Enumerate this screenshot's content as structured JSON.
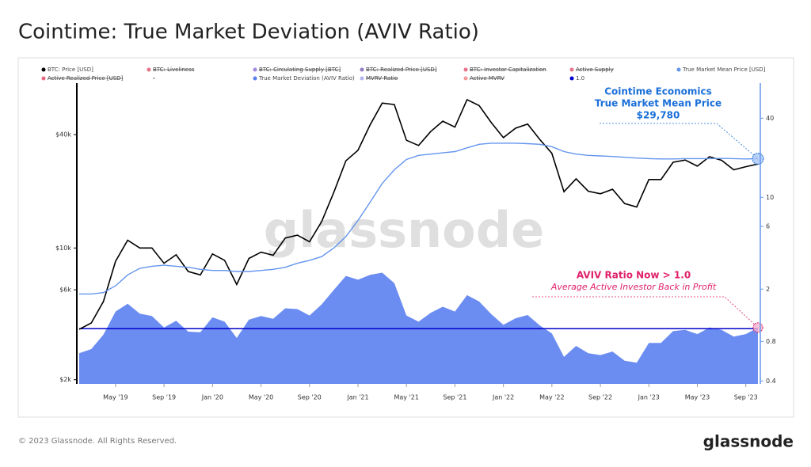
{
  "chart_data": {
    "type": "line",
    "title": "Cointime: True Market Deviation (AVIV Ratio)",
    "x": [
      "2019-02",
      "2019-03",
      "2019-04",
      "2019-05",
      "2019-06",
      "2019-07",
      "2019-08",
      "2019-09",
      "2019-10",
      "2019-11",
      "2019-12",
      "2020-01",
      "2020-02",
      "2020-03",
      "2020-04",
      "2020-05",
      "2020-06",
      "2020-07",
      "2020-08",
      "2020-09",
      "2020-10",
      "2020-11",
      "2020-12",
      "2021-01",
      "2021-02",
      "2021-03",
      "2021-04",
      "2021-05",
      "2021-06",
      "2021-07",
      "2021-08",
      "2021-09",
      "2021-10",
      "2021-11",
      "2021-12",
      "2022-01",
      "2022-02",
      "2022-03",
      "2022-04",
      "2022-05",
      "2022-06",
      "2022-07",
      "2022-08",
      "2022-09",
      "2022-10",
      "2022-11",
      "2022-12",
      "2023-01",
      "2023-02",
      "2023-03",
      "2023-04",
      "2023-05",
      "2023-06",
      "2023-07",
      "2023-08",
      "2023-09",
      "2023-10"
    ],
    "xlim": [
      "2019-02",
      "2023-10"
    ],
    "xticks": [
      {
        "value": "2019-05",
        "label": "May '19"
      },
      {
        "value": "2019-09",
        "label": "Sep '19"
      },
      {
        "value": "2020-01",
        "label": "Jan '20"
      },
      {
        "value": "2020-05",
        "label": "May '20"
      },
      {
        "value": "2020-09",
        "label": "Sep '20"
      },
      {
        "value": "2021-01",
        "label": "Jan '21"
      },
      {
        "value": "2021-05",
        "label": "May '21"
      },
      {
        "value": "2021-09",
        "label": "Sep '21"
      },
      {
        "value": "2022-01",
        "label": "Jan '22"
      },
      {
        "value": "2022-05",
        "label": "May '22"
      },
      {
        "value": "2022-09",
        "label": "Sep '22"
      },
      {
        "value": "2023-01",
        "label": "Jan '23"
      },
      {
        "value": "2023-05",
        "label": "May '23"
      },
      {
        "value": "2023-09",
        "label": "Sep '23"
      }
    ],
    "ylim": [
      1900,
      75000
    ],
    "ylog": true,
    "yticks": [
      {
        "value": 2000,
        "label": "$2k"
      },
      {
        "value": 6000,
        "label": "$6k"
      },
      {
        "value": 10000,
        "label": "$10k"
      },
      {
        "value": 40000,
        "label": "$40k"
      }
    ],
    "y2lim": [
      0.38,
      74
    ],
    "y2log": true,
    "y2ticks": [
      0.4,
      0.8,
      2,
      6,
      10,
      40
    ],
    "series": [
      {
        "name": "BTC: Price [USD]",
        "color": "#000000",
        "style": "line",
        "values": [
          3700,
          4000,
          5200,
          8500,
          11000,
          10000,
          10000,
          8300,
          9200,
          7500,
          7200,
          9300,
          8600,
          6400,
          8800,
          9500,
          9150,
          11300,
          11700,
          10800,
          13800,
          19700,
          29000,
          33000,
          45000,
          58800,
          57700,
          37300,
          35000,
          41500,
          47100,
          43800,
          61300,
          57000,
          46300,
          38500,
          43200,
          45500,
          37700,
          31800,
          19900,
          23300,
          20000,
          19400,
          20500,
          17200,
          16500,
          23100,
          23100,
          28500,
          29300,
          27200,
          30500,
          29200,
          26000,
          27000,
          27900
        ]
      },
      {
        "name": "True Market Mean Price [USD]",
        "color": "#6495ed",
        "style": "line",
        "values": [
          5700,
          5700,
          5800,
          6300,
          7200,
          7800,
          8000,
          8100,
          8000,
          7900,
          7700,
          7600,
          7600,
          7500,
          7500,
          7600,
          7700,
          7900,
          8300,
          8600,
          9000,
          10000,
          11500,
          14000,
          17500,
          22000,
          26000,
          29500,
          31000,
          31500,
          32000,
          32500,
          34000,
          35500,
          36000,
          36000,
          36000,
          35800,
          35500,
          34500,
          32500,
          31500,
          31000,
          30800,
          30600,
          30300,
          30000,
          29800,
          29700,
          29700,
          29800,
          29800,
          29800,
          29900,
          29800,
          29700,
          29780
        ]
      },
      {
        "name": "True Market Deviation (AVIV Ratio)",
        "color": "#5b7ff0",
        "style": "area",
        "axis": "y2",
        "values": [
          0.65,
          0.7,
          0.9,
          1.35,
          1.55,
          1.3,
          1.25,
          1.02,
          1.15,
          0.95,
          0.94,
          1.22,
          1.13,
          0.85,
          1.17,
          1.25,
          1.19,
          1.43,
          1.41,
          1.26,
          1.53,
          1.97,
          2.52,
          2.36,
          2.57,
          2.67,
          2.22,
          1.26,
          1.13,
          1.32,
          1.47,
          1.35,
          1.8,
          1.61,
          1.29,
          1.07,
          1.2,
          1.27,
          1.06,
          0.92,
          0.61,
          0.74,
          0.65,
          0.63,
          0.67,
          0.57,
          0.55,
          0.78,
          0.78,
          0.96,
          0.98,
          0.91,
          1.02,
          0.98,
          0.87,
          0.91,
          1.02
        ]
      }
    ],
    "hline": {
      "name": "1.0",
      "value": 1,
      "axis": "y2",
      "color": "#0000cc"
    },
    "hidden_series": [
      {
        "name": "BTC: Liveliness",
        "color": "#e0506a"
      },
      {
        "name": "BTC: Circulating Supply [BTC]",
        "color": "#8a6bd8"
      },
      {
        "name": "BTC: Realized Price [USD]",
        "color": "#7a5ab8"
      },
      {
        "name": "BTC: Investor Capitalization",
        "color": "#e0506a"
      },
      {
        "name": "Active Supply",
        "color": "#e0506a"
      },
      {
        "name": "Active Realized Price [USD]",
        "color": "#e0405a"
      },
      {
        "name": "-"
      },
      {
        "name": "MVRV Ratio",
        "color": "#a0a0e8"
      },
      {
        "name": "Active MVRV",
        "color": "#f08080"
      }
    ],
    "annotations": [
      {
        "lines": [
          "Cointime Economics",
          "True Market Mean Price",
          "$29,780"
        ],
        "color": "#1a6fd8"
      },
      {
        "lines": [
          "AVIV Ratio Now > 1.0",
          "Average Active Investor Back in Profit"
        ],
        "color": "#e0206a"
      }
    ],
    "watermark": "glassnode"
  },
  "footer": {
    "copyright": "© 2023 Glassnode. All Rights Reserved.",
    "logo": "glassnode"
  }
}
